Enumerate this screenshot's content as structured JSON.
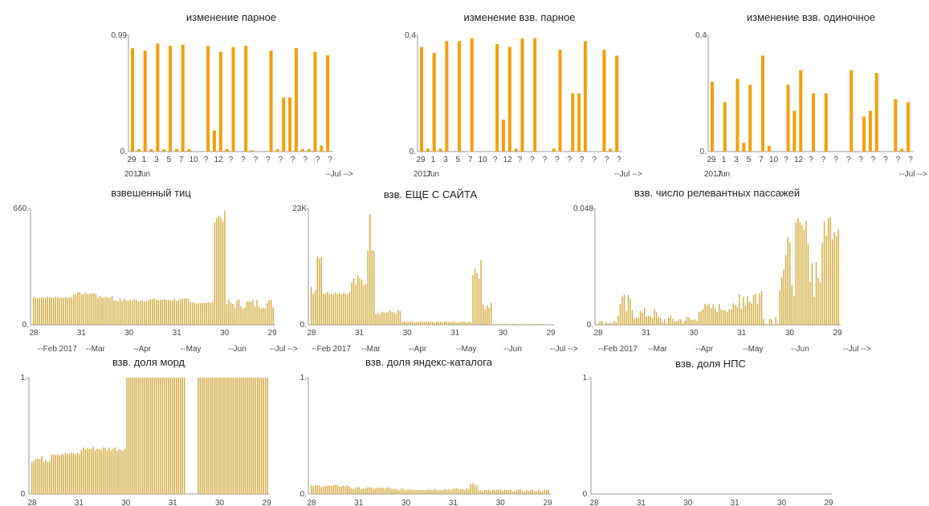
{
  "palette": {
    "orange": "#f59e0b",
    "olive": "#d2a93a"
  },
  "chart_data": [
    {
      "title": "изменение парное",
      "type": "bar",
      "color_key": "orange",
      "ylim": [
        0,
        0.99
      ],
      "y_ticks": [
        "0.99",
        "0."
      ],
      "x_ticks": [
        "29",
        "1",
        "3",
        "5",
        "7",
        "10",
        "?",
        "12",
        "?",
        "?",
        "?",
        "?",
        "?",
        "?",
        "?",
        "?",
        "?"
      ],
      "x_date_labels": [
        "2017",
        "Jun",
        "--Jul -->"
      ],
      "values": [
        0.88,
        0.02,
        0.86,
        0.02,
        0.92,
        0.02,
        0.9,
        0.02,
        0.91,
        0.02,
        0,
        0,
        0.9,
        0.18,
        0.85,
        0.02,
        0.89,
        0,
        0.9,
        0.01,
        0,
        0,
        0.86,
        0.02,
        0.46,
        0.46,
        0.88,
        0.02,
        0.02,
        0.85,
        0.05,
        0.82
      ]
    },
    {
      "title": "изменение взв. парное",
      "type": "bar",
      "color_key": "orange",
      "ylim": [
        0,
        0.4
      ],
      "y_ticks": [
        "0.4",
        "0."
      ],
      "x_ticks": [
        "29",
        "1",
        "3",
        "5",
        "7",
        "10",
        "?",
        "12",
        "?",
        "?",
        "?",
        "?",
        "?",
        "?",
        "?",
        "?",
        "?"
      ],
      "x_date_labels": [
        "2017",
        "Jun",
        "--Jul -->"
      ],
      "values": [
        0.36,
        0.01,
        0.34,
        0.01,
        0.38,
        0,
        0.38,
        0,
        0.39,
        0,
        0,
        0,
        0.37,
        0.11,
        0.36,
        0.01,
        0.39,
        0,
        0.39,
        0,
        0,
        0.01,
        0.35,
        0,
        0.2,
        0.2,
        0.38,
        0,
        0,
        0.35,
        0.01,
        0.33
      ]
    },
    {
      "title": "изменение взв. одиночное",
      "type": "bar",
      "color_key": "orange",
      "ylim": [
        0,
        0.4
      ],
      "y_ticks": [
        "0.4",
        "0."
      ],
      "x_ticks": [
        "29",
        "1",
        "3",
        "5",
        "7",
        "10",
        "?",
        "12",
        "?",
        "?",
        "?",
        "?",
        "?",
        "?",
        "?",
        "?",
        "?"
      ],
      "x_date_labels": [
        "2017",
        "Jun",
        "--Jul -->"
      ],
      "values": [
        0.24,
        0,
        0.17,
        0,
        0.25,
        0.03,
        0.23,
        0,
        0.33,
        0.02,
        0,
        0,
        0.23,
        0.14,
        0.28,
        0,
        0.2,
        0,
        0.2,
        0,
        0,
        0,
        0.28,
        0,
        0.12,
        0.14,
        0.27,
        0,
        0,
        0.18,
        0.01,
        0.17
      ]
    },
    {
      "title": "взвешенный тиц",
      "type": "bar",
      "color_key": "olive",
      "ylim": [
        0,
        660
      ],
      "y_ticks": [
        "660.",
        "0."
      ],
      "x_ticks": [
        "28",
        "31",
        "30",
        "31",
        "30",
        "29"
      ],
      "x_date_labels": [
        "--Feb 2017",
        "--Mar",
        "--Apr",
        "--May",
        "--Jun",
        "--Jul -->"
      ],
      "n": 120,
      "segments": [
        [
          0,
          20,
          150,
          160
        ],
        [
          20,
          32,
          170,
          185
        ],
        [
          32,
          40,
          150,
          165
        ],
        [
          40,
          58,
          130,
          150
        ],
        [
          58,
          78,
          135,
          150
        ],
        [
          78,
          90,
          120,
          130
        ],
        [
          90,
          96,
          580,
          650
        ],
        [
          96,
          120,
          90,
          150
        ]
      ]
    },
    {
      "title": "взв. ЕЩЕ С САЙТА",
      "type": "bar",
      "color_key": "olive",
      "ylim": [
        0,
        23000
      ],
      "y_ticks": [
        "23K",
        "0."
      ],
      "x_ticks": [
        "28",
        "31",
        "30",
        "31",
        "30",
        "29"
      ],
      "x_date_labels": [
        "--Feb 2017",
        "--Mar",
        "--Apr",
        "--May",
        "--Jun",
        "--Jul -->"
      ],
      "n": 120,
      "segments": [
        [
          0,
          3,
          6000,
          9000
        ],
        [
          3,
          6,
          13000,
          14000
        ],
        [
          6,
          20,
          6000,
          6600
        ],
        [
          20,
          28,
          7000,
          10000
        ],
        [
          28,
          32,
          14000,
          23000
        ],
        [
          32,
          45,
          2000,
          3000
        ],
        [
          45,
          80,
          400,
          700
        ],
        [
          80,
          85,
          9000,
          13000
        ],
        [
          85,
          90,
          3000,
          5000
        ],
        [
          90,
          120,
          0,
          200
        ]
      ]
    },
    {
      "title": "взв. число релевантных пассажей",
      "type": "bar",
      "color_key": "olive",
      "ylim": [
        0,
        0.048
      ],
      "y_ticks": [
        "0.048",
        "0."
      ],
      "x_ticks": [
        "28",
        "31",
        "30",
        "31",
        "30",
        "29"
      ],
      "x_date_labels": [
        "--Feb 2017",
        "--Mar",
        "--Apr",
        "--May",
        "--Jun",
        "--Jul -->"
      ],
      "n": 120,
      "segments": [
        [
          0,
          10,
          0,
          0.002
        ],
        [
          10,
          18,
          0.001,
          0.013
        ],
        [
          18,
          30,
          0.002,
          0.007
        ],
        [
          30,
          50,
          0,
          0.004
        ],
        [
          50,
          70,
          0.005,
          0.009
        ],
        [
          70,
          82,
          0.006,
          0.018
        ],
        [
          82,
          90,
          0,
          0.005
        ],
        [
          90,
          98,
          0.012,
          0.037
        ],
        [
          98,
          105,
          0.033,
          0.044
        ],
        [
          105,
          112,
          0.01,
          0.035
        ],
        [
          112,
          120,
          0.035,
          0.048
        ]
      ]
    },
    {
      "title": "взв. доля морд",
      "type": "bar",
      "color_key": "olive",
      "ylim": [
        0,
        1
      ],
      "y_ticks": [
        "1.",
        "0."
      ],
      "x_ticks": [
        "28",
        "31",
        "30",
        "31",
        "30",
        "29"
      ],
      "x_date_labels": [],
      "n": 120,
      "segments": [
        [
          0,
          10,
          0.27,
          0.33
        ],
        [
          10,
          25,
          0.33,
          0.36
        ],
        [
          25,
          48,
          0.37,
          0.41
        ],
        [
          48,
          78,
          1,
          1
        ],
        [
          78,
          84,
          0,
          0
        ],
        [
          84,
          120,
          1,
          1
        ]
      ]
    },
    {
      "title": "взв. доля яндекс-каталога",
      "type": "bar",
      "color_key": "olive",
      "ylim": [
        0,
        1
      ],
      "y_ticks": [
        "1.",
        "0."
      ],
      "x_ticks": [
        "28",
        "31",
        "30",
        "31",
        "30",
        "29"
      ],
      "x_date_labels": [],
      "n": 120,
      "segments": [
        [
          0,
          20,
          0.06,
          0.08
        ],
        [
          20,
          40,
          0.04,
          0.06
        ],
        [
          40,
          80,
          0.03,
          0.05
        ],
        [
          80,
          84,
          0.07,
          0.12
        ],
        [
          84,
          120,
          0.02,
          0.04
        ]
      ]
    },
    {
      "title": "взв. доля НПС",
      "type": "bar",
      "color_key": "olive",
      "ylim": [
        0,
        1
      ],
      "y_ticks": [
        "1.",
        "0."
      ],
      "x_ticks": [
        "28",
        "31",
        "30",
        "31",
        "30",
        "29"
      ],
      "x_date_labels": [],
      "n": 120,
      "segments": [
        [
          0,
          120,
          0,
          0
        ]
      ]
    }
  ]
}
